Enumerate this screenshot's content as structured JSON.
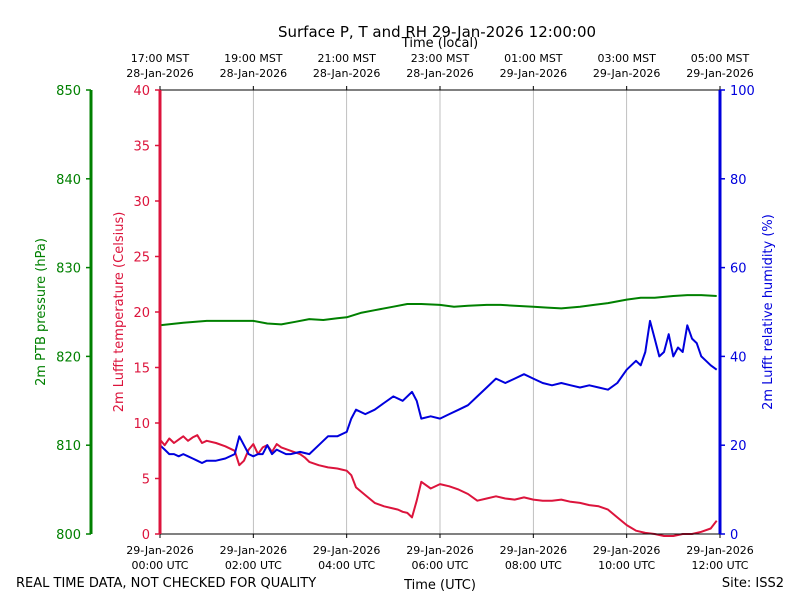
{
  "chart_data": {
    "type": "line",
    "title": "Surface P, T and RH 29-Jan-2026 12:00:00",
    "xlabel": "Time (UTC)",
    "top_xlabel": "Time (local)",
    "x_unit": "hours since 29-Jan-2026 00:00 UTC",
    "xlim": [
      0,
      12
    ],
    "grid": "vertical",
    "bottom_ticks": [
      {
        "x": 0,
        "line1": "29-Jan-2026",
        "line2": "00:00 UTC"
      },
      {
        "x": 2,
        "line1": "29-Jan-2026",
        "line2": "02:00 UTC"
      },
      {
        "x": 4,
        "line1": "29-Jan-2026",
        "line2": "04:00 UTC"
      },
      {
        "x": 6,
        "line1": "29-Jan-2026",
        "line2": "06:00 UTC"
      },
      {
        "x": 8,
        "line1": "29-Jan-2026",
        "line2": "08:00 UTC"
      },
      {
        "x": 10,
        "line1": "29-Jan-2026",
        "line2": "10:00 UTC"
      },
      {
        "x": 12,
        "line1": "29-Jan-2026",
        "line2": "12:00 UTC"
      }
    ],
    "top_ticks": [
      {
        "x": 0,
        "line1": "17:00 MST",
        "line2": "28-Jan-2026"
      },
      {
        "x": 2,
        "line1": "19:00 MST",
        "line2": "28-Jan-2026"
      },
      {
        "x": 4,
        "line1": "21:00 MST",
        "line2": "28-Jan-2026"
      },
      {
        "x": 6,
        "line1": "23:00 MST",
        "line2": "28-Jan-2026"
      },
      {
        "x": 8,
        "line1": "01:00 MST",
        "line2": "29-Jan-2026"
      },
      {
        "x": 10,
        "line1": "03:00 MST",
        "line2": "29-Jan-2026"
      },
      {
        "x": 12,
        "line1": "05:00 MST",
        "line2": "29-Jan-2026"
      }
    ],
    "axes": {
      "pressure": {
        "label": "2m PTB pressure (hPa)",
        "ylim": [
          800,
          850
        ],
        "ticks": [
          800,
          810,
          820,
          830,
          840,
          850
        ],
        "color": "#008000"
      },
      "temperature": {
        "label": "2m Lufft temperature (Celsius)",
        "ylim": [
          0,
          40
        ],
        "ticks": [
          0,
          5,
          10,
          15,
          20,
          25,
          30,
          35,
          40
        ],
        "color": "#dc143c"
      },
      "humidity": {
        "label": "2m Lufft relative humidity (%)",
        "ylim": [
          0,
          100
        ],
        "ticks": [
          0,
          20,
          40,
          60,
          80,
          100
        ],
        "color": "#0000dd"
      }
    },
    "series": [
      {
        "name": "pressure",
        "axis": "pressure",
        "color": "#008000",
        "x": [
          0,
          0.5,
          1,
          1.5,
          2,
          2.3,
          2.6,
          2.9,
          3.2,
          3.5,
          3.8,
          4.0,
          4.3,
          4.6,
          5.0,
          5.3,
          5.6,
          6.0,
          6.3,
          6.6,
          7.0,
          7.3,
          7.6,
          8.0,
          8.3,
          8.6,
          9.0,
          9.3,
          9.6,
          10.0,
          10.3,
          10.6,
          11.0,
          11.3,
          11.6,
          11.93
        ],
        "y": [
          823.5,
          823.8,
          824.0,
          824.0,
          824.0,
          823.7,
          823.6,
          823.9,
          824.2,
          824.1,
          824.3,
          824.4,
          824.9,
          825.2,
          825.6,
          825.9,
          825.9,
          825.8,
          825.6,
          825.7,
          825.8,
          825.8,
          825.7,
          825.6,
          825.5,
          825.4,
          825.6,
          825.8,
          826.0,
          826.4,
          826.6,
          826.6,
          826.8,
          826.9,
          826.9,
          826.8
        ]
      },
      {
        "name": "temperature",
        "axis": "temperature",
        "color": "#dc143c",
        "x": [
          0,
          0.1,
          0.2,
          0.3,
          0.4,
          0.5,
          0.6,
          0.7,
          0.8,
          0.9,
          1.0,
          1.2,
          1.4,
          1.6,
          1.7,
          1.8,
          1.9,
          2.0,
          2.1,
          2.2,
          2.3,
          2.4,
          2.5,
          2.6,
          2.8,
          3.0,
          3.1,
          3.2,
          3.4,
          3.6,
          3.8,
          3.9,
          4.0,
          4.1,
          4.2,
          4.4,
          4.6,
          4.8,
          5.0,
          5.1,
          5.2,
          5.3,
          5.4,
          5.5,
          5.6,
          5.8,
          6.0,
          6.2,
          6.4,
          6.6,
          6.8,
          7.0,
          7.2,
          7.4,
          7.6,
          7.8,
          8.0,
          8.2,
          8.4,
          8.6,
          8.8,
          9.0,
          9.2,
          9.4,
          9.6,
          9.8,
          10.0,
          10.2,
          10.4,
          10.6,
          10.8,
          11.0,
          11.2,
          11.4,
          11.6,
          11.8,
          11.93
        ],
        "y": [
          8.5,
          8.0,
          8.6,
          8.2,
          8.5,
          8.8,
          8.4,
          8.7,
          8.9,
          8.2,
          8.4,
          8.2,
          7.9,
          7.5,
          6.2,
          6.6,
          7.6,
          8.1,
          7.2,
          7.8,
          8.0,
          7.4,
          8.1,
          7.8,
          7.5,
          7.2,
          6.9,
          6.5,
          6.2,
          6.0,
          5.9,
          5.8,
          5.7,
          5.3,
          4.2,
          3.5,
          2.8,
          2.5,
          2.3,
          2.2,
          2.0,
          1.9,
          1.5,
          3.0,
          4.7,
          4.1,
          4.5,
          4.3,
          4.0,
          3.6,
          3.0,
          3.2,
          3.4,
          3.2,
          3.1,
          3.3,
          3.1,
          3.0,
          3.0,
          3.1,
          2.9,
          2.8,
          2.6,
          2.5,
          2.2,
          1.5,
          0.8,
          0.3,
          0.1,
          0.0,
          -0.3,
          -0.2,
          0.0,
          0.0,
          0.2,
          0.5,
          1.2
        ]
      },
      {
        "name": "humidity",
        "axis": "humidity",
        "color": "#0000dd",
        "x": [
          0,
          0.1,
          0.2,
          0.3,
          0.4,
          0.5,
          0.6,
          0.7,
          0.8,
          0.9,
          1.0,
          1.2,
          1.4,
          1.6,
          1.7,
          1.8,
          1.9,
          2.0,
          2.1,
          2.2,
          2.3,
          2.4,
          2.5,
          2.6,
          2.7,
          2.8,
          3.0,
          3.2,
          3.4,
          3.6,
          3.8,
          4.0,
          4.1,
          4.2,
          4.4,
          4.6,
          4.8,
          5.0,
          5.2,
          5.4,
          5.5,
          5.6,
          5.8,
          6.0,
          6.2,
          6.4,
          6.6,
          6.8,
          7.0,
          7.2,
          7.4,
          7.6,
          7.8,
          8.0,
          8.2,
          8.4,
          8.6,
          8.8,
          9.0,
          9.2,
          9.4,
          9.6,
          9.8,
          10.0,
          10.2,
          10.3,
          10.4,
          10.5,
          10.6,
          10.7,
          10.8,
          10.9,
          11.0,
          11.1,
          11.2,
          11.3,
          11.4,
          11.5,
          11.6,
          11.7,
          11.8,
          11.93
        ],
        "y": [
          20,
          19,
          18,
          18,
          17.5,
          18,
          17.5,
          17,
          16.5,
          16,
          16.5,
          16.5,
          17,
          18,
          22,
          20,
          18,
          17.5,
          18,
          18,
          20,
          18,
          19,
          18.5,
          18,
          18,
          18.5,
          18,
          20,
          22,
          22,
          23,
          26,
          28,
          27,
          28,
          29.5,
          31,
          30,
          32,
          30,
          26,
          26.5,
          26,
          27,
          28,
          29,
          31,
          33,
          35,
          34,
          35,
          36,
          35,
          34,
          33.5,
          34,
          33.5,
          33,
          33.5,
          33,
          32.5,
          34,
          37,
          39,
          38,
          41,
          48,
          44,
          40,
          41,
          45,
          40,
          42,
          41,
          47,
          44,
          43,
          40,
          39,
          38,
          37
        ]
      }
    ]
  },
  "footer": {
    "disclaimer": "REAL TIME DATA, NOT CHECKED FOR QUALITY",
    "site": "Site: ISS2"
  }
}
